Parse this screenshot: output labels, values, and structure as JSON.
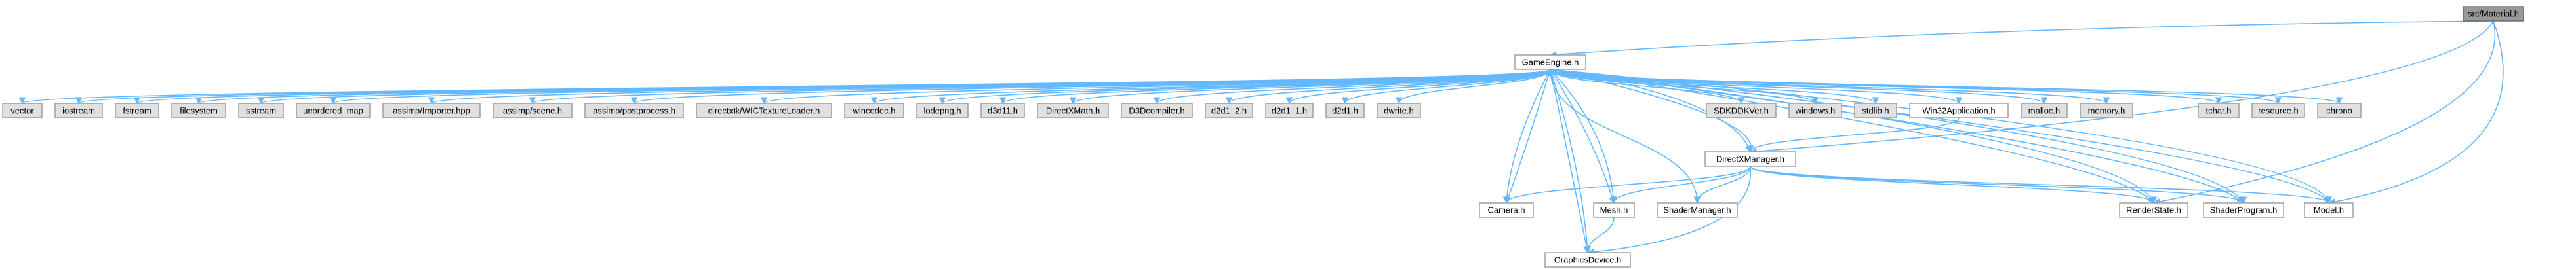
{
  "graph": {
    "colors": {
      "edge": "#63b8ff",
      "node_border": "#999999",
      "node_fill": "#ffffff",
      "external_fill": "#e0e0e0",
      "root_fill": "#999999",
      "root_border": "#666666",
      "text": "#000000"
    },
    "nodes": [
      {
        "id": "root",
        "label": "src/Material.h",
        "kind": "root"
      },
      {
        "id": "gameengine",
        "label": "GameEngine.h",
        "kind": "file"
      },
      {
        "id": "vector",
        "label": "vector",
        "kind": "external"
      },
      {
        "id": "iostream",
        "label": "iostream",
        "kind": "external"
      },
      {
        "id": "fstream",
        "label": "fstream",
        "kind": "external"
      },
      {
        "id": "filesystem",
        "label": "filesystem",
        "kind": "external"
      },
      {
        "id": "sstream",
        "label": "sstream",
        "kind": "external"
      },
      {
        "id": "unordered_map",
        "label": "unordered_map",
        "kind": "external"
      },
      {
        "id": "importer",
        "label": "assimp/Importer.hpp",
        "kind": "external"
      },
      {
        "id": "scene",
        "label": "assimp/scene.h",
        "kind": "external"
      },
      {
        "id": "postprocess",
        "label": "assimp/postprocess.h",
        "kind": "external"
      },
      {
        "id": "wictex",
        "label": "directxtk/WICTextureLoader.h",
        "kind": "external"
      },
      {
        "id": "wincodec",
        "label": "wincodec.h",
        "kind": "external"
      },
      {
        "id": "lodepng",
        "label": "lodepng.h",
        "kind": "external"
      },
      {
        "id": "d3d11",
        "label": "d3d11.h",
        "kind": "external"
      },
      {
        "id": "dxmath",
        "label": "DirectXMath.h",
        "kind": "external"
      },
      {
        "id": "d3dcompiler",
        "label": "D3Dcompiler.h",
        "kind": "external"
      },
      {
        "id": "d2d1_2",
        "label": "d2d1_2.h",
        "kind": "external"
      },
      {
        "id": "d2d1_1",
        "label": "d2d1_1.h",
        "kind": "external"
      },
      {
        "id": "d2d1",
        "label": "d2d1.h",
        "kind": "external"
      },
      {
        "id": "dwrite",
        "label": "dwrite.h",
        "kind": "external"
      },
      {
        "id": "sdkddkver",
        "label": "SDKDDKVer.h",
        "kind": "external"
      },
      {
        "id": "windows",
        "label": "windows.h",
        "kind": "external"
      },
      {
        "id": "stdlib",
        "label": "stdlib.h",
        "kind": "external"
      },
      {
        "id": "win32app",
        "label": "Win32Application.h",
        "kind": "file"
      },
      {
        "id": "malloc",
        "label": "malloc.h",
        "kind": "external"
      },
      {
        "id": "memory",
        "label": "memory.h",
        "kind": "external"
      },
      {
        "id": "tchar",
        "label": "tchar.h",
        "kind": "external"
      },
      {
        "id": "resource",
        "label": "resource.h",
        "kind": "external"
      },
      {
        "id": "chrono",
        "label": "chrono",
        "kind": "external"
      },
      {
        "id": "dxmanager",
        "label": "DirectXManager.h",
        "kind": "file"
      },
      {
        "id": "camera",
        "label": "Camera.h",
        "kind": "file"
      },
      {
        "id": "mesh",
        "label": "Mesh.h",
        "kind": "file"
      },
      {
        "id": "shadermanager",
        "label": "ShaderManager.h",
        "kind": "file"
      },
      {
        "id": "renderstate",
        "label": "RenderState.h",
        "kind": "file"
      },
      {
        "id": "shaderprogram",
        "label": "ShaderProgram.h",
        "kind": "file"
      },
      {
        "id": "model",
        "label": "Model.h",
        "kind": "file"
      },
      {
        "id": "graphicsdevice",
        "label": "GraphicsDevice.h",
        "kind": "file"
      }
    ],
    "edges": [
      {
        "from": "root",
        "to": "gameengine"
      },
      {
        "from": "root",
        "to": "dxmanager"
      },
      {
        "from": "root",
        "to": "renderstate"
      },
      {
        "from": "root",
        "to": "model"
      },
      {
        "from": "gameengine",
        "to": "vector"
      },
      {
        "from": "gameengine",
        "to": "iostream"
      },
      {
        "from": "gameengine",
        "to": "fstream"
      },
      {
        "from": "gameengine",
        "to": "filesystem"
      },
      {
        "from": "gameengine",
        "to": "sstream"
      },
      {
        "from": "gameengine",
        "to": "unordered_map"
      },
      {
        "from": "gameengine",
        "to": "importer"
      },
      {
        "from": "gameengine",
        "to": "scene"
      },
      {
        "from": "gameengine",
        "to": "postprocess"
      },
      {
        "from": "gameengine",
        "to": "wictex"
      },
      {
        "from": "gameengine",
        "to": "wincodec"
      },
      {
        "from": "gameengine",
        "to": "lodepng"
      },
      {
        "from": "gameengine",
        "to": "d3d11"
      },
      {
        "from": "gameengine",
        "to": "dxmath"
      },
      {
        "from": "gameengine",
        "to": "d3dcompiler"
      },
      {
        "from": "gameengine",
        "to": "d2d1_2"
      },
      {
        "from": "gameengine",
        "to": "d2d1_1"
      },
      {
        "from": "gameengine",
        "to": "d2d1"
      },
      {
        "from": "gameengine",
        "to": "dwrite"
      },
      {
        "from": "gameengine",
        "to": "sdkddkver"
      },
      {
        "from": "gameengine",
        "to": "windows"
      },
      {
        "from": "gameengine",
        "to": "stdlib"
      },
      {
        "from": "gameengine",
        "to": "win32app"
      },
      {
        "from": "gameengine",
        "to": "malloc"
      },
      {
        "from": "gameengine",
        "to": "memory"
      },
      {
        "from": "gameengine",
        "to": "tchar"
      },
      {
        "from": "gameengine",
        "to": "resource"
      },
      {
        "from": "gameengine",
        "to": "chrono"
      },
      {
        "from": "gameengine",
        "to": "dxmanager"
      },
      {
        "from": "gameengine",
        "to": "camera"
      },
      {
        "from": "gameengine",
        "to": "mesh"
      },
      {
        "from": "gameengine",
        "to": "graphicsdevice"
      },
      {
        "from": "gameengine",
        "to": "renderstate"
      },
      {
        "from": "gameengine",
        "to": "shaderprogram"
      },
      {
        "from": "gameengine",
        "to": "model"
      },
      {
        "from": "win32app",
        "to": "dxmanager"
      },
      {
        "from": "dxmanager",
        "to": "gameengine"
      },
      {
        "from": "dxmanager",
        "to": "camera"
      },
      {
        "from": "dxmanager",
        "to": "mesh"
      },
      {
        "from": "dxmanager",
        "to": "shadermanager"
      },
      {
        "from": "dxmanager",
        "to": "renderstate"
      },
      {
        "from": "dxmanager",
        "to": "shaderprogram"
      },
      {
        "from": "dxmanager",
        "to": "model"
      },
      {
        "from": "dxmanager",
        "to": "graphicsdevice"
      },
      {
        "from": "camera",
        "to": "gameengine"
      },
      {
        "from": "mesh",
        "to": "gameengine"
      },
      {
        "from": "mesh",
        "to": "graphicsdevice"
      },
      {
        "from": "shadermanager",
        "to": "gameengine"
      },
      {
        "from": "graphicsdevice",
        "to": "gameengine"
      },
      {
        "from": "renderstate",
        "to": "gameengine"
      },
      {
        "from": "shaderprogram",
        "to": "gameengine"
      },
      {
        "from": "model",
        "to": "gameengine"
      }
    ]
  }
}
